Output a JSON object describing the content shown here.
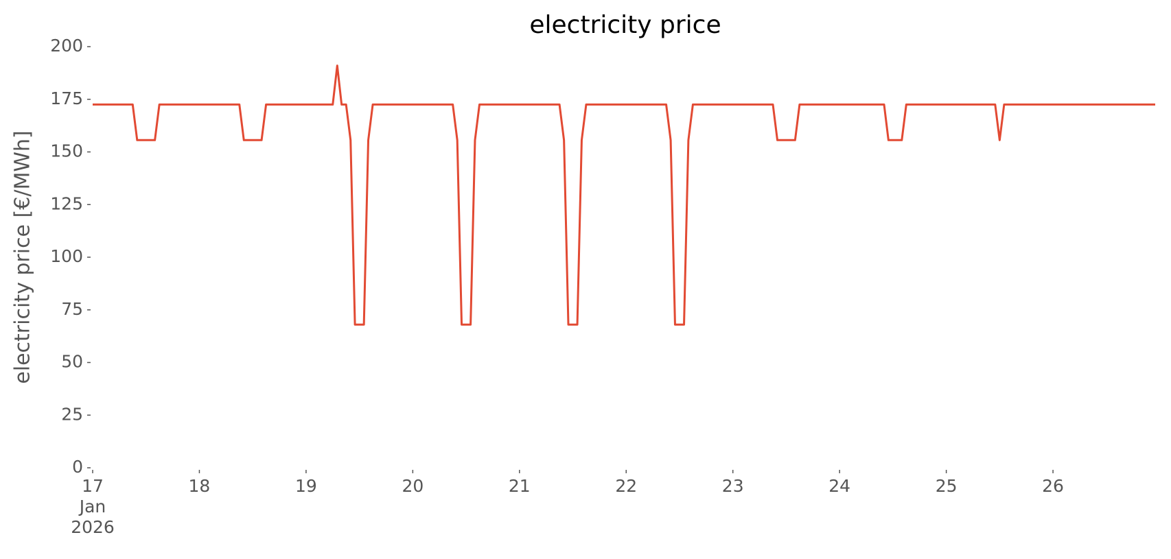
{
  "chart_data": {
    "type": "line",
    "title": "electricity price",
    "ylabel": "electricity price [€/MWh]",
    "x": [
      17,
      17.375,
      17.417,
      17.583,
      17.625,
      18.375,
      18.417,
      18.583,
      18.625,
      19.25,
      19.292,
      19.333,
      19.375,
      19.417,
      19.458,
      19.542,
      19.583,
      19.625,
      20.375,
      20.417,
      20.458,
      20.542,
      20.583,
      20.625,
      21.375,
      21.417,
      21.458,
      21.542,
      21.583,
      21.625,
      22.375,
      22.417,
      22.458,
      22.542,
      22.583,
      22.625,
      23.375,
      23.417,
      23.583,
      23.625,
      24.417,
      24.458,
      24.583,
      24.625,
      25.458,
      25.5,
      25.542,
      26.958
    ],
    "series": [
      {
        "color": "#E24A33",
        "values": [
          172.5,
          172.5,
          155.6,
          155.6,
          172.5,
          172.5,
          155.6,
          155.6,
          172.5,
          172.5,
          191,
          172.5,
          172.5,
          155.6,
          68,
          68,
          155.6,
          172.5,
          172.5,
          155.6,
          68,
          68,
          155.6,
          172.5,
          172.5,
          155.6,
          68,
          68,
          155.6,
          172.5,
          172.5,
          155.6,
          68,
          68,
          155.6,
          172.5,
          172.5,
          155.6,
          155.6,
          172.5,
          172.5,
          155.6,
          155.6,
          172.5,
          172.5,
          155.6,
          172.5,
          172.5
        ]
      }
    ],
    "xlim": [
      17,
      26.958
    ],
    "xticks": [
      {
        "value": 17,
        "label": "17\nJan\n2026"
      },
      18,
      19,
      20,
      21,
      22,
      23,
      24,
      25,
      26
    ],
    "ylim": [
      0,
      200
    ],
    "yticks": [
      0,
      25,
      50,
      75,
      100,
      125,
      150,
      175,
      200
    ],
    "grid": false
  }
}
